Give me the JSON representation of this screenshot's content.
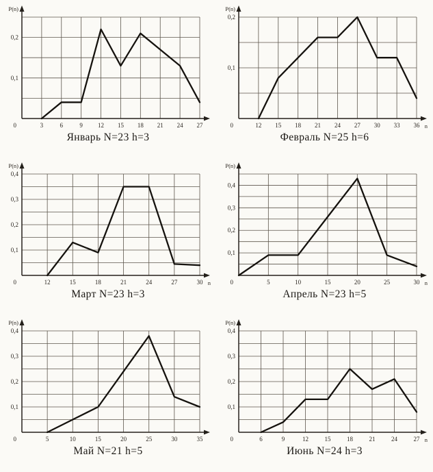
{
  "colors": {
    "paper": "#fbfaf6",
    "ink": "#15120e",
    "grid_line": "#5d564c",
    "axis_line": "#24201b"
  },
  "chart_data": [
    {
      "type": "line",
      "title": "Январь N=23 h=3",
      "month": "Январь",
      "N": 23,
      "h": 3,
      "ylabel": "P(n)",
      "xlabel": "",
      "x_labels": [
        "0",
        "3",
        "6",
        "9",
        "12",
        "15",
        "18",
        "21",
        "24",
        "27"
      ],
      "y_axis": {
        "max": 0.25,
        "step": 0.05,
        "ticks": [
          {
            "value": 0.1,
            "label": "0,1"
          },
          {
            "value": 0.2,
            "label": "0,2"
          }
        ]
      },
      "points": [
        [
          3,
          0
        ],
        [
          6,
          0.04
        ],
        [
          9,
          0.04
        ],
        [
          12,
          0.22
        ],
        [
          15,
          0.13
        ],
        [
          18,
          0.21
        ],
        [
          21,
          0.17
        ],
        [
          24,
          0.13
        ],
        [
          27,
          0.04
        ]
      ]
    },
    {
      "type": "line",
      "title": "Февраль N=25 h=6",
      "month": "Февраль",
      "N": 25,
      "h": 6,
      "ylabel": "P(n)",
      "xlabel": "n",
      "x_labels": [
        "0",
        "12",
        "15",
        "18",
        "21",
        "24",
        "27",
        "30",
        "33",
        "36"
      ],
      "y_axis": {
        "max": 0.2,
        "step": 0.05,
        "ticks": [
          {
            "value": 0.1,
            "label": "0,1"
          },
          {
            "value": 0.2,
            "label": "0,2"
          }
        ]
      },
      "points": [
        [
          12,
          0
        ],
        [
          15,
          0.08
        ],
        [
          18,
          0.12
        ],
        [
          21,
          0.16
        ],
        [
          24,
          0.16
        ],
        [
          27,
          0.2
        ],
        [
          30,
          0.12
        ],
        [
          33,
          0.12
        ],
        [
          36,
          0.04
        ]
      ]
    },
    {
      "type": "line",
      "title": "Март N=23 h=3",
      "month": "Март",
      "N": 23,
      "h": 3,
      "ylabel": "P(n)",
      "xlabel": "n",
      "x_labels": [
        "0",
        "12",
        "15",
        "18",
        "21",
        "24",
        "27",
        "30"
      ],
      "y_axis": {
        "max": 0.4,
        "step": 0.05,
        "ticks": [
          {
            "value": 0.1,
            "label": "0,1"
          },
          {
            "value": 0.2,
            "label": "0,2"
          },
          {
            "value": 0.3,
            "label": "0,3"
          },
          {
            "value": 0.4,
            "label": "0,4"
          }
        ]
      },
      "points": [
        [
          12,
          0
        ],
        [
          15,
          0.13
        ],
        [
          18,
          0.09
        ],
        [
          21,
          0.35
        ],
        [
          24,
          0.35
        ],
        [
          27,
          0.045
        ],
        [
          30,
          0.04
        ]
      ]
    },
    {
      "type": "line",
      "title": "Апрель N=23 h=5",
      "month": "Апрель",
      "N": 23,
      "h": 5,
      "ylabel": "P(n)",
      "xlabel": "n",
      "x_labels": [
        "0",
        "5",
        "10",
        "15",
        "20",
        "25",
        "30"
      ],
      "y_axis": {
        "max": 0.45,
        "step": 0.05,
        "ticks": [
          {
            "value": 0.1,
            "label": "0,1"
          },
          {
            "value": 0.2,
            "label": "0,2"
          },
          {
            "value": 0.3,
            "label": "0,3"
          },
          {
            "value": 0.4,
            "label": "0,4"
          }
        ]
      },
      "points": [
        [
          0,
          0
        ],
        [
          5,
          0.09
        ],
        [
          10,
          0.09
        ],
        [
          15,
          0.26
        ],
        [
          20,
          0.43
        ],
        [
          25,
          0.09
        ],
        [
          30,
          0.04
        ]
      ]
    },
    {
      "type": "line",
      "title": "Май N=21 h=5",
      "month": "Май",
      "N": 21,
      "h": 5,
      "ylabel": "P(n)",
      "xlabel": "",
      "x_labels": [
        "0",
        "5",
        "10",
        "15",
        "20",
        "25",
        "30",
        "35"
      ],
      "y_axis": {
        "max": 0.4,
        "step": 0.05,
        "ticks": [
          {
            "value": 0.1,
            "label": "0,1"
          },
          {
            "value": 0.2,
            "label": "0,2"
          },
          {
            "value": 0.3,
            "label": "0,3"
          },
          {
            "value": 0.4,
            "label": "0,4"
          }
        ]
      },
      "points": [
        [
          5,
          0
        ],
        [
          10,
          0.05
        ],
        [
          15,
          0.1
        ],
        [
          20,
          0.24
        ],
        [
          25,
          0.38
        ],
        [
          30,
          0.14
        ],
        [
          35,
          0.1
        ]
      ]
    },
    {
      "type": "line",
      "title": "Июнь N=24 h=3",
      "month": "Июнь",
      "N": 24,
      "h": 3,
      "ylabel": "P(n)",
      "xlabel": "n",
      "x_labels": [
        "0",
        "6",
        "9",
        "12",
        "15",
        "18",
        "21",
        "24",
        "27"
      ],
      "y_axis": {
        "max": 0.4,
        "step": 0.05,
        "ticks": [
          {
            "value": 0.1,
            "label": "0,1"
          },
          {
            "value": 0.2,
            "label": "0,2"
          },
          {
            "value": 0.3,
            "label": "0,3"
          },
          {
            "value": 0.4,
            "label": "0,4"
          }
        ]
      },
      "points": [
        [
          6,
          0
        ],
        [
          9,
          0.04
        ],
        [
          12,
          0.13
        ],
        [
          15,
          0.13
        ],
        [
          18,
          0.25
        ],
        [
          21,
          0.17
        ],
        [
          24,
          0.21
        ],
        [
          27,
          0.08
        ]
      ]
    }
  ]
}
